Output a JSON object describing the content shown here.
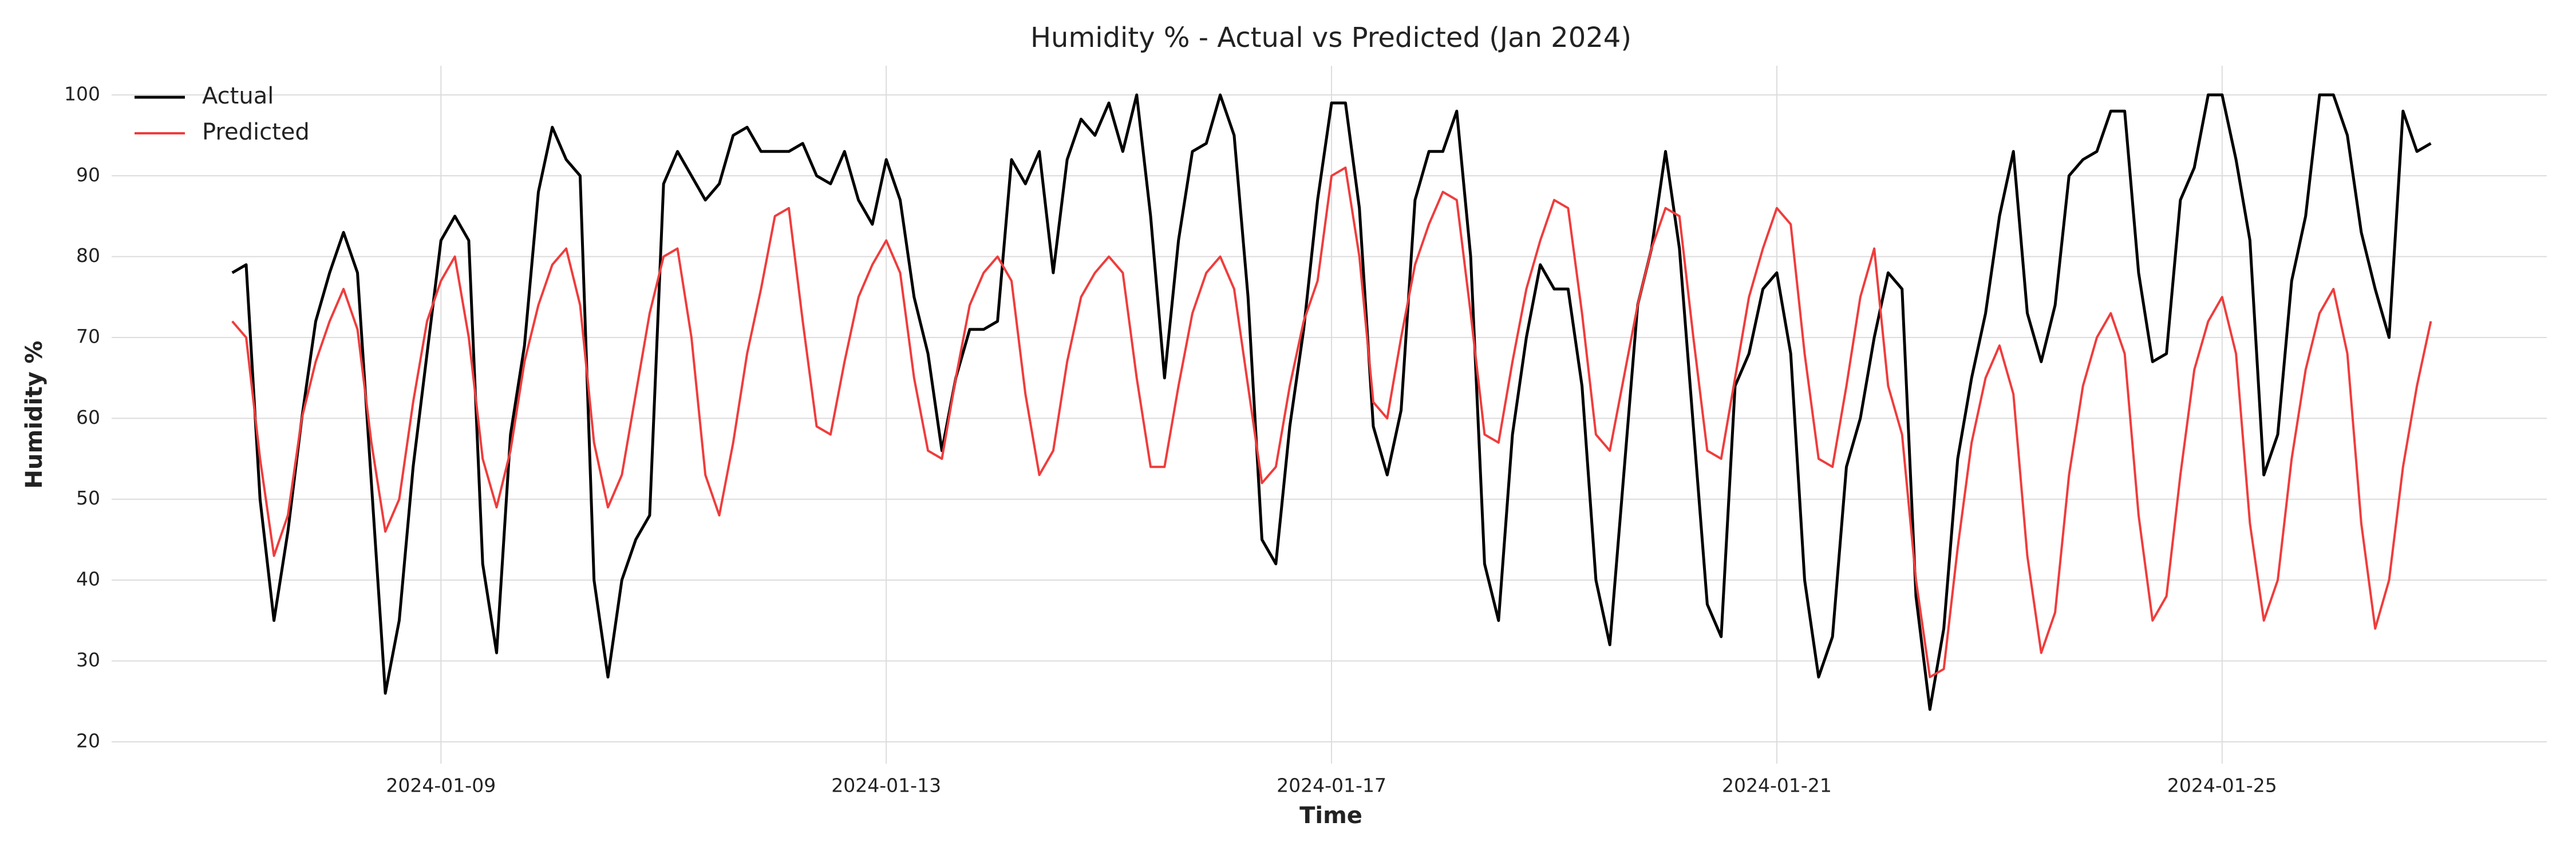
{
  "chart_data": {
    "type": "line",
    "title": "Humidity % - Actual vs Predicted (Jan 2024)",
    "x_label": "Time",
    "y_label": "Humidity %",
    "x": [
      "2024-01-07T03:00",
      "2024-01-07T06:00",
      "2024-01-07T09:00",
      "2024-01-07T12:00",
      "2024-01-07T15:00",
      "2024-01-07T18:00",
      "2024-01-07T21:00",
      "2024-01-08T00:00",
      "2024-01-08T03:00",
      "2024-01-08T06:00",
      "2024-01-08T09:00",
      "2024-01-08T12:00",
      "2024-01-08T15:00",
      "2024-01-08T18:00",
      "2024-01-08T21:00",
      "2024-01-09T00:00",
      "2024-01-09T03:00",
      "2024-01-09T06:00",
      "2024-01-09T09:00",
      "2024-01-09T12:00",
      "2024-01-09T15:00",
      "2024-01-09T18:00",
      "2024-01-09T21:00",
      "2024-01-10T00:00",
      "2024-01-10T03:00",
      "2024-01-10T06:00",
      "2024-01-10T09:00",
      "2024-01-10T12:00",
      "2024-01-10T15:00",
      "2024-01-10T18:00",
      "2024-01-10T21:00",
      "2024-01-11T00:00",
      "2024-01-11T03:00",
      "2024-01-11T06:00",
      "2024-01-11T09:00",
      "2024-01-11T12:00",
      "2024-01-11T15:00",
      "2024-01-11T18:00",
      "2024-01-11T21:00",
      "2024-01-12T00:00",
      "2024-01-12T03:00",
      "2024-01-12T06:00",
      "2024-01-12T09:00",
      "2024-01-12T12:00",
      "2024-01-12T15:00",
      "2024-01-12T18:00",
      "2024-01-12T21:00",
      "2024-01-13T00:00",
      "2024-01-13T03:00",
      "2024-01-13T06:00",
      "2024-01-13T09:00",
      "2024-01-13T12:00",
      "2024-01-13T15:00",
      "2024-01-13T18:00",
      "2024-01-13T21:00",
      "2024-01-14T00:00",
      "2024-01-14T03:00",
      "2024-01-14T06:00",
      "2024-01-14T09:00",
      "2024-01-14T12:00",
      "2024-01-14T15:00",
      "2024-01-14T18:00",
      "2024-01-14T21:00",
      "2024-01-15T00:00",
      "2024-01-15T03:00",
      "2024-01-15T06:00",
      "2024-01-15T09:00",
      "2024-01-15T12:00",
      "2024-01-15T15:00",
      "2024-01-15T18:00",
      "2024-01-15T21:00",
      "2024-01-16T00:00",
      "2024-01-16T03:00",
      "2024-01-16T06:00",
      "2024-01-16T09:00",
      "2024-01-16T12:00",
      "2024-01-16T15:00",
      "2024-01-16T18:00",
      "2024-01-16T21:00",
      "2024-01-17T00:00",
      "2024-01-17T03:00",
      "2024-01-17T06:00",
      "2024-01-17T09:00",
      "2024-01-17T12:00",
      "2024-01-17T15:00",
      "2024-01-17T18:00",
      "2024-01-17T21:00",
      "2024-01-18T00:00",
      "2024-01-18T03:00",
      "2024-01-18T06:00",
      "2024-01-18T09:00",
      "2024-01-18T12:00",
      "2024-01-18T15:00",
      "2024-01-18T18:00",
      "2024-01-18T21:00",
      "2024-01-19T00:00",
      "2024-01-19T03:00",
      "2024-01-19T06:00",
      "2024-01-19T09:00",
      "2024-01-19T12:00",
      "2024-01-19T15:00",
      "2024-01-19T18:00",
      "2024-01-19T21:00",
      "2024-01-20T00:00",
      "2024-01-20T03:00",
      "2024-01-20T06:00",
      "2024-01-20T09:00",
      "2024-01-20T12:00",
      "2024-01-20T15:00",
      "2024-01-20T18:00",
      "2024-01-20T21:00",
      "2024-01-21T00:00",
      "2024-01-21T03:00",
      "2024-01-21T06:00",
      "2024-01-21T09:00",
      "2024-01-21T12:00",
      "2024-01-21T15:00",
      "2024-01-21T18:00",
      "2024-01-21T21:00",
      "2024-01-22T00:00",
      "2024-01-22T03:00",
      "2024-01-22T06:00",
      "2024-01-22T09:00",
      "2024-01-22T12:00",
      "2024-01-22T15:00",
      "2024-01-22T18:00",
      "2024-01-22T21:00",
      "2024-01-23T00:00",
      "2024-01-23T03:00",
      "2024-01-23T06:00",
      "2024-01-23T09:00",
      "2024-01-23T12:00",
      "2024-01-23T15:00",
      "2024-01-23T18:00",
      "2024-01-23T21:00",
      "2024-01-24T00:00",
      "2024-01-24T03:00",
      "2024-01-24T06:00",
      "2024-01-24T09:00",
      "2024-01-24T12:00",
      "2024-01-24T15:00",
      "2024-01-24T18:00",
      "2024-01-24T21:00",
      "2024-01-25T00:00",
      "2024-01-25T03:00",
      "2024-01-25T06:00",
      "2024-01-25T09:00",
      "2024-01-25T12:00",
      "2024-01-25T15:00",
      "2024-01-25T18:00",
      "2024-01-25T21:00",
      "2024-01-26T00:00",
      "2024-01-26T03:00",
      "2024-01-26T06:00",
      "2024-01-26T09:00",
      "2024-01-26T12:00",
      "2024-01-26T15:00",
      "2024-01-26T18:00",
      "2024-01-26T21:00"
    ],
    "series": [
      {
        "name": "Actual",
        "color": "#000000",
        "values": [
          78,
          79,
          50,
          35,
          46,
          60,
          72,
          78,
          83,
          78,
          52,
          26,
          35,
          54,
          68,
          82,
          85,
          82,
          42,
          31,
          58,
          69,
          88,
          96,
          92,
          90,
          40,
          28,
          40,
          45,
          48,
          89,
          93,
          90,
          87,
          89,
          95,
          96,
          93,
          93,
          93,
          94,
          90,
          89,
          93,
          87,
          84,
          92,
          87,
          75,
          68,
          56,
          65,
          71,
          71,
          72,
          92,
          89,
          93,
          78,
          92,
          97,
          95,
          99,
          93,
          100,
          85,
          65,
          82,
          93,
          94,
          100,
          95,
          75,
          45,
          42,
          59,
          71,
          87,
          99,
          99,
          86,
          59,
          53,
          61,
          87,
          93,
          93,
          98,
          80,
          42,
          35,
          58,
          70,
          79,
          76,
          76,
          64,
          40,
          32,
          53,
          74,
          81,
          93,
          81,
          59,
          37,
          33,
          64,
          68,
          76,
          78,
          68,
          40,
          28,
          33,
          54,
          60,
          70,
          78,
          76,
          38,
          24,
          34,
          55,
          65,
          73,
          85,
          93,
          73,
          67,
          74,
          90,
          92,
          93,
          98,
          98,
          78,
          67,
          68,
          87,
          91,
          100,
          100,
          92,
          82,
          53,
          58,
          77,
          85,
          100,
          100,
          95,
          83,
          76,
          70,
          98,
          93,
          94
        ]
      },
      {
        "name": "Predicted",
        "color": "#f03c3c",
        "values": [
          72,
          70,
          55,
          43,
          48,
          60,
          67,
          72,
          76,
          71,
          57,
          46,
          50,
          62,
          72,
          77,
          80,
          70,
          55,
          49,
          56,
          67,
          74,
          79,
          81,
          74,
          57,
          49,
          53,
          63,
          73,
          80,
          81,
          70,
          53,
          48,
          57,
          68,
          76,
          85,
          86,
          72,
          59,
          58,
          67,
          75,
          79,
          82,
          78,
          65,
          56,
          55,
          65,
          74,
          78,
          80,
          77,
          63,
          53,
          56,
          67,
          75,
          78,
          80,
          78,
          65,
          54,
          54,
          64,
          73,
          78,
          80,
          76,
          64,
          52,
          54,
          64,
          72,
          77,
          90,
          91,
          80,
          62,
          60,
          70,
          79,
          84,
          88,
          87,
          73,
          58,
          57,
          67,
          76,
          82,
          87,
          86,
          73,
          58,
          56,
          65,
          74,
          81,
          86,
          85,
          70,
          56,
          55,
          65,
          75,
          81,
          86,
          84,
          68,
          55,
          54,
          64,
          75,
          81,
          64,
          58,
          40,
          28,
          29,
          44,
          57,
          65,
          69,
          63,
          43,
          31,
          36,
          53,
          64,
          70,
          73,
          68,
          48,
          35,
          38,
          53,
          66,
          72,
          75,
          68,
          47,
          35,
          40,
          55,
          66,
          73,
          76,
          68,
          47,
          34,
          40,
          54,
          64,
          72
        ]
      }
    ],
    "xlim": [
      "2024-01-06T01:00",
      "2024-01-27T22:00"
    ],
    "xticks": [
      "2024-01-09",
      "2024-01-13",
      "2024-01-17",
      "2024-01-21",
      "2024-01-25"
    ],
    "ylim": [
      17.3,
      103.6
    ],
    "yticks": [
      20,
      30,
      40,
      50,
      60,
      70,
      80,
      90,
      100
    ],
    "grid": true,
    "legend": "upper left"
  }
}
